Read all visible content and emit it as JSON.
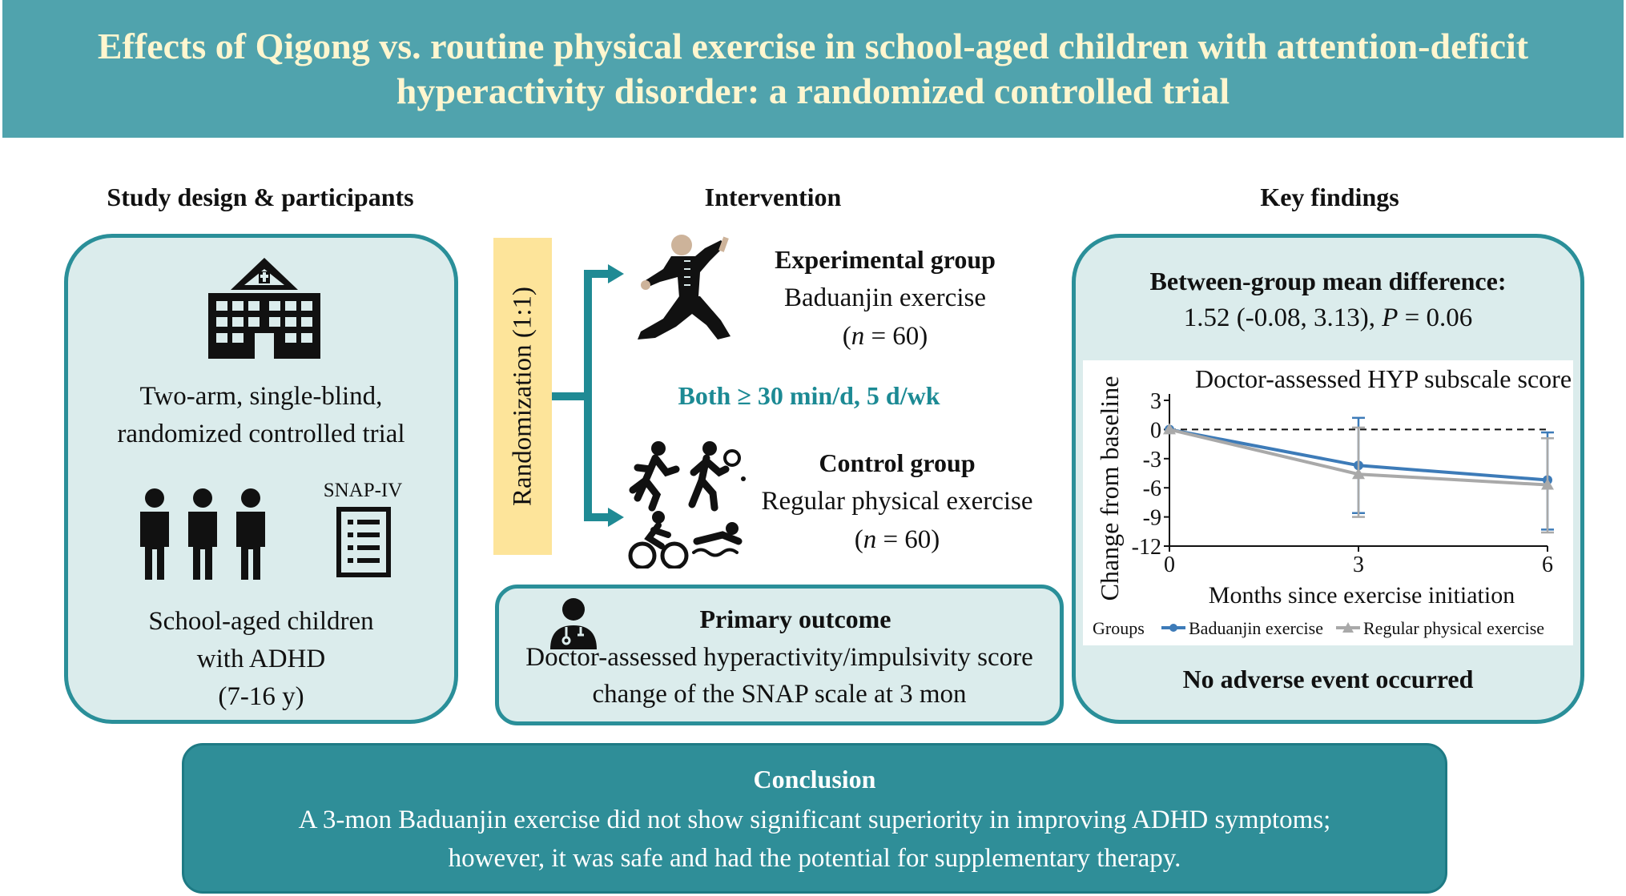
{
  "banner": {
    "title": "Effects of Qigong vs. routine physical exercise in school-aged children with attention-deficit hyperactivity disorder: a randomized controlled trial"
  },
  "design": {
    "heading": "Study design & participants",
    "trial_line1": "Two-arm, single-blind,",
    "trial_line2": "randomized controlled trial",
    "snap_label": "SNAP-IV",
    "participants_line1": "School-aged children",
    "participants_line2": "with ADHD",
    "participants_line3": "(7-16 y)"
  },
  "intervention": {
    "heading": "Intervention",
    "randomization": "Randomization (1:1)",
    "experimental": {
      "title": "Experimental group",
      "exercise": "Baduanjin exercise",
      "n_prefix": "(",
      "n_var": "n",
      "n_suffix": " = 60)"
    },
    "both": "Both ≥ 30 min/d, 5 d/wk",
    "control": {
      "title": "Control group",
      "exercise": "Regular physical exercise",
      "n_prefix": "(",
      "n_var": "n",
      "n_suffix": " = 60)"
    },
    "primary_outcome": {
      "title": "Primary outcome",
      "line1": "Doctor-assessed hyperactivity/impulsivity score",
      "line2": "change of the SNAP scale at 3 mon"
    }
  },
  "findings": {
    "heading": "Key findings",
    "between_title": "Between-group mean difference:",
    "between_value_prefix": "1.52 (-0.08, 3.13), ",
    "between_p": "P",
    "between_value_suffix": " = 0.06",
    "adverse": "No adverse event occurred"
  },
  "conclusion": {
    "title": "Conclusion",
    "line1": "A 3-mon Baduanjin exercise did not show significant superiority in improving ADHD symptoms;",
    "line2": "however, it was safe and had the potential for supplementary therapy."
  },
  "colors": {
    "banner": "#50a3ad",
    "banner_text": "#fff6cf",
    "panel_fill": "#dbecec",
    "panel_border": "#2a8f99",
    "randomization_bar": "#fde49a",
    "accent_text": "#1c8a94",
    "conclusion_fill": "#2f8e98"
  },
  "icons": [
    "hospital-icon",
    "children-group-icon",
    "questionnaire-icon",
    "tai-chi-figure-icon",
    "sports-icon",
    "doctor-icon"
  ],
  "chart_data": {
    "type": "line",
    "title": "Doctor-assessed HYP subscale score",
    "xlabel": "Months since exercise initiation",
    "ylabel": "Change from baseline",
    "x": [
      0,
      3,
      6
    ],
    "xticks": [
      "0",
      "3",
      "6"
    ],
    "yticks": [
      "3",
      "0",
      "-3",
      "-6",
      "-9",
      "-12"
    ],
    "ylim": [
      -12,
      3
    ],
    "xlim": [
      0,
      6
    ],
    "reference_line": 0,
    "legend_title": "Groups",
    "legend_position": "bottom",
    "series": [
      {
        "name": "Baduanjin exercise",
        "color": "#3d7bb8",
        "values": [
          0,
          -3.7,
          -5.2
        ],
        "err_low": [
          0,
          -8.6,
          -10.3
        ],
        "err_high": [
          0,
          1.2,
          -0.3
        ]
      },
      {
        "name": "Regular physical exercise",
        "color": "#a9a9a9",
        "values": [
          0,
          -4.6,
          -5.7
        ],
        "err_low": [
          0,
          -9.0,
          -10.6
        ],
        "err_high": [
          0,
          0.2,
          -0.9
        ]
      }
    ]
  }
}
